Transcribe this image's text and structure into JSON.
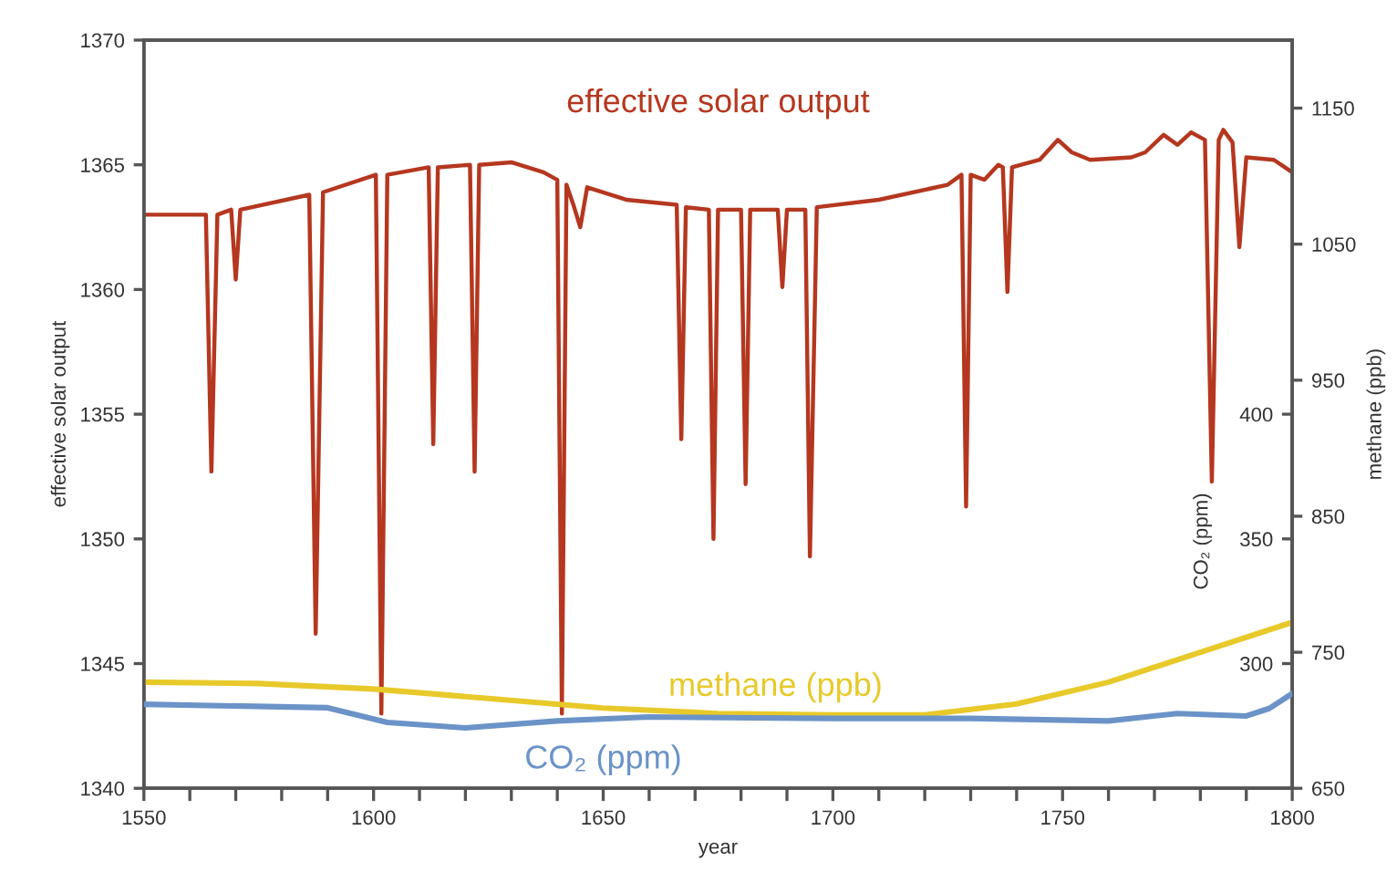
{
  "chart_data": {
    "type": "line",
    "xlabel": "year",
    "ylabel": "effective solar output",
    "y2label": "methane (ppb)",
    "y3label": "CO₂ (ppm)",
    "xlim": [
      1550,
      1800
    ],
    "xticks": [
      1550,
      {
        "value": 1560,
        "label": null
      },
      {
        "value": 1570,
        "label": null
      },
      {
        "value": 1580,
        "label": null
      },
      {
        "value": 1590,
        "label": null
      },
      1600,
      {
        "value": 1610,
        "label": null
      },
      {
        "value": 1620,
        "label": null
      },
      {
        "value": 1630,
        "label": null
      },
      {
        "value": 1640,
        "label": null
      },
      1650,
      {
        "value": 1660,
        "label": null
      },
      {
        "value": 1670,
        "label": null
      },
      {
        "value": 1680,
        "label": null
      },
      {
        "value": 1690,
        "label": null
      },
      1700,
      {
        "value": 1710,
        "label": null
      },
      {
        "value": 1720,
        "label": null
      },
      {
        "value": 1730,
        "label": null
      },
      {
        "value": 1740,
        "label": null
      },
      1750,
      {
        "value": 1760,
        "label": null
      },
      {
        "value": 1770,
        "label": null
      },
      {
        "value": 1780,
        "label": null
      },
      {
        "value": 1790,
        "label": null
      },
      1800
    ],
    "ylim": [
      1340,
      1370
    ],
    "yticks": [
      1340,
      1345,
      1350,
      1355,
      1360,
      1365,
      1370
    ],
    "y2lim": [
      650,
      1200
    ],
    "y2ticks": [
      650,
      750,
      850,
      950,
      1050,
      1150
    ],
    "y3lim": [
      250,
      550
    ],
    "y3ticks": [
      300,
      350,
      400
    ],
    "grid": false,
    "legend": false,
    "series": [
      {
        "name": "effective solar output",
        "color": "#b5371f",
        "axis": "y",
        "x": [
          1550,
          1563.5,
          1564.7,
          1566,
          1569,
          1570,
          1571,
          1586,
          1587.4,
          1589,
          1600.5,
          1601.7,
          1603,
          1612,
          1613,
          1614,
          1621,
          1622,
          1623,
          1630,
          1637,
          1640,
          1641,
          1642,
          1643.5,
          1645,
          1646.5,
          1655,
          1666,
          1667,
          1668,
          1673,
          1674,
          1675,
          1680,
          1681,
          1682,
          1688,
          1689,
          1690,
          1694,
          1695,
          1696.5,
          1710,
          1725,
          1728,
          1729,
          1730,
          1733,
          1736,
          1737,
          1738,
          1739,
          1745,
          1749,
          1752,
          1756,
          1765,
          1768,
          1772,
          1775,
          1778,
          1781,
          1782.5,
          1784,
          1785,
          1787,
          1788.5,
          1790,
          1796,
          1800
        ],
        "values": [
          1363,
          1363,
          1352.7,
          1363,
          1363.2,
          1360.4,
          1363.2,
          1363.8,
          1346.2,
          1363.9,
          1364.6,
          1343,
          1364.6,
          1364.9,
          1353.8,
          1364.9,
          1365,
          1352.7,
          1365,
          1365.1,
          1364.7,
          1364.4,
          1343,
          1364.2,
          1363.4,
          1362.5,
          1364.1,
          1363.6,
          1363.4,
          1354,
          1363.3,
          1363.2,
          1350,
          1363.2,
          1363.2,
          1352.2,
          1363.2,
          1363.2,
          1360.1,
          1363.2,
          1363.2,
          1349.3,
          1363.3,
          1363.6,
          1364.2,
          1364.6,
          1351.3,
          1364.6,
          1364.4,
          1365,
          1364.9,
          1359.9,
          1364.9,
          1365.2,
          1366,
          1365.5,
          1365.2,
          1365.3,
          1365.5,
          1366.2,
          1365.8,
          1366.3,
          1366,
          1352.3,
          1366,
          1366.4,
          1365.9,
          1361.7,
          1365.3,
          1365.2,
          1364.7
        ]
      },
      {
        "name": "methane (ppb)",
        "color": "#e8c92a",
        "axis": "y2",
        "x": [
          1550,
          1575,
          1600,
          1625,
          1650,
          1675,
          1700,
          1720,
          1740,
          1760,
          1780,
          1800
        ],
        "values": [
          728,
          727,
          723,
          716,
          709,
          705,
          704,
          704,
          712,
          728,
          750,
          772
        ]
      },
      {
        "name": "CO₂ (ppm)",
        "color": "#6b93c8",
        "axis": "y3",
        "x": [
          1550,
          1590,
          1603,
          1620,
          1640,
          1660,
          1700,
          1730,
          1760,
          1775,
          1790,
          1795,
          1800
        ],
        "values": [
          283.7,
          282.3,
          276.4,
          274.2,
          277,
          278.6,
          278,
          278,
          277,
          280,
          279,
          282,
          288
        ]
      }
    ]
  }
}
